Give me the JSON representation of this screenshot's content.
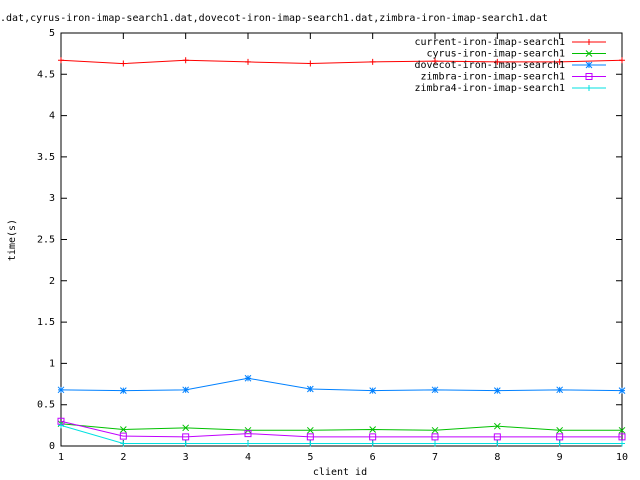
{
  "chart_data": {
    "type": "line",
    "title": ".dat,cyrus-iron-imap-search1.dat,dovecot-iron-imap-search1.dat,zimbra-iron-imap-search1.dat",
    "xlabel": "client id",
    "ylabel": "time(s)",
    "x": [
      1,
      2,
      3,
      4,
      5,
      6,
      7,
      8,
      9,
      10
    ],
    "xlim": [
      1,
      10
    ],
    "xticks": [
      1,
      2,
      3,
      4,
      5,
      6,
      7,
      8,
      9,
      10
    ],
    "ylim": [
      0,
      5
    ],
    "yticks": [
      0,
      0.5,
      1,
      1.5,
      2,
      2.5,
      3,
      3.5,
      4,
      4.5,
      5
    ],
    "legend": "upper right",
    "series": [
      {
        "name": "current-iron-imap-search1",
        "color": "#ff0000",
        "marker": "plus",
        "values": [
          4.67,
          4.63,
          4.67,
          4.65,
          4.63,
          4.65,
          4.66,
          4.65,
          4.65,
          4.67
        ]
      },
      {
        "name": "cyrus-iron-imap-search1",
        "color": "#00c000",
        "marker": "cross",
        "values": [
          0.27,
          0.2,
          0.22,
          0.19,
          0.19,
          0.2,
          0.19,
          0.24,
          0.19,
          0.19
        ]
      },
      {
        "name": "dovecot-iron-imap-search1",
        "color": "#0080ff",
        "marker": "star",
        "values": [
          0.68,
          0.67,
          0.68,
          0.82,
          0.69,
          0.67,
          0.68,
          0.67,
          0.68,
          0.67
        ]
      },
      {
        "name": "zimbra-iron-imap-search1",
        "color": "#c000ff",
        "marker": "square",
        "values": [
          0.3,
          0.12,
          0.11,
          0.15,
          0.11,
          0.11,
          0.11,
          0.11,
          0.11,
          0.11
        ]
      },
      {
        "name": "zimbra4-iron-imap-search1",
        "color": "#00e0e0",
        "marker": "plus",
        "values": [
          0.25,
          0.03,
          0.03,
          0.03,
          0.03,
          0.03,
          0.03,
          0.03,
          0.03,
          0.03
        ]
      }
    ]
  }
}
